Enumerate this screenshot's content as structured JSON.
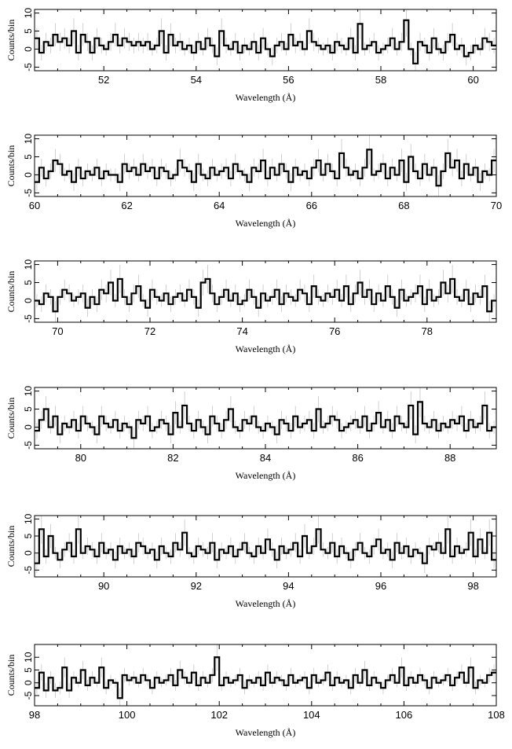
{
  "chart_data": [
    {
      "type": "line",
      "xlabel": "Wavelength (Å)",
      "ylabel": "Counts/bin",
      "xlim": [
        50.5,
        60.5
      ],
      "ylim": [
        -6,
        11
      ],
      "xticks": [
        52,
        54,
        56,
        58,
        60
      ],
      "yticks": [
        -5,
        0,
        5,
        10
      ],
      "grid": false,
      "x": [
        50.5,
        50.6,
        50.7,
        50.8,
        50.9,
        51.0,
        51.1,
        51.2,
        51.3,
        51.4,
        51.5,
        51.6,
        51.7,
        51.8,
        51.9,
        52.0,
        52.1,
        52.2,
        52.3,
        52.4,
        52.5,
        52.6,
        52.7,
        52.8,
        52.9,
        53.0,
        53.1,
        53.2,
        53.3,
        53.4,
        53.5,
        53.6,
        53.7,
        53.8,
        53.9,
        54.0,
        54.1,
        54.2,
        54.3,
        54.4,
        54.5,
        54.6,
        54.7,
        54.8,
        54.9,
        55.0,
        55.1,
        55.2,
        55.3,
        55.4,
        55.5,
        55.6,
        55.7,
        55.8,
        55.9,
        56.0,
        56.1,
        56.2,
        56.3,
        56.4,
        56.5,
        56.6,
        56.7,
        56.8,
        56.9,
        57.0,
        57.1,
        57.2,
        57.3,
        57.4,
        57.5,
        57.6,
        57.7,
        57.8,
        57.9,
        58.0,
        58.1,
        58.2,
        58.3,
        58.4,
        58.5,
        58.6,
        58.7,
        58.8,
        58.9,
        59.0,
        59.1,
        59.2,
        59.3,
        59.4,
        59.5,
        59.6,
        59.7,
        59.8,
        59.9,
        60.0,
        60.1,
        60.2,
        60.3,
        60.4
      ],
      "values": [
        3,
        -1,
        2,
        1,
        4,
        2,
        3,
        1,
        5,
        -1,
        4,
        2,
        -1,
        3,
        1,
        0,
        2,
        4,
        1,
        3,
        2,
        1,
        2,
        1,
        2,
        0,
        1,
        5,
        -1,
        4,
        1,
        2,
        0,
        1,
        -1,
        2,
        0,
        3,
        1,
        -2,
        5,
        1,
        0,
        2,
        -1,
        1,
        0,
        2,
        -1,
        3,
        0,
        -2,
        1,
        2,
        0,
        4,
        1,
        2,
        0,
        5,
        2,
        1,
        0,
        1,
        -1,
        2,
        1,
        0,
        3,
        -1,
        7,
        0,
        1,
        2,
        -1,
        0,
        1,
        3,
        0,
        2,
        8,
        0,
        -4,
        2,
        1,
        -1,
        3,
        0,
        -1,
        2,
        4,
        0,
        1,
        -2,
        -1,
        1,
        0,
        3,
        2,
        1
      ]
    },
    {
      "type": "line",
      "xlabel": "Wavelength (Å)",
      "ylabel": "Counts/bin",
      "xlim": [
        60,
        70
      ],
      "ylim": [
        -6,
        11
      ],
      "xticks": [
        60,
        62,
        64,
        66,
        68,
        70
      ],
      "yticks": [
        -5,
        0,
        5,
        10
      ],
      "grid": false,
      "x": [
        60.0,
        60.1,
        60.2,
        60.3,
        60.4,
        60.5,
        60.6,
        60.7,
        60.8,
        60.9,
        61.0,
        61.1,
        61.2,
        61.3,
        61.4,
        61.5,
        61.6,
        61.7,
        61.8,
        61.9,
        62.0,
        62.1,
        62.2,
        62.3,
        62.4,
        62.5,
        62.6,
        62.7,
        62.8,
        62.9,
        63.0,
        63.1,
        63.2,
        63.3,
        63.4,
        63.5,
        63.6,
        63.7,
        63.8,
        63.9,
        64.0,
        64.1,
        64.2,
        64.3,
        64.4,
        64.5,
        64.6,
        64.7,
        64.8,
        64.9,
        65.0,
        65.1,
        65.2,
        65.3,
        65.4,
        65.5,
        65.6,
        65.7,
        65.8,
        65.9,
        66.0,
        66.1,
        66.2,
        66.3,
        66.4,
        66.5,
        66.6,
        66.7,
        66.8,
        66.9,
        67.0,
        67.1,
        67.2,
        67.3,
        67.4,
        67.5,
        67.6,
        67.7,
        67.8,
        67.9,
        68.0,
        68.1,
        68.2,
        68.3,
        68.4,
        68.5,
        68.6,
        68.7,
        68.8,
        68.9,
        69.0,
        69.1,
        69.2,
        69.3,
        69.4,
        69.5,
        69.6,
        69.7,
        69.8,
        69.9
      ],
      "values": [
        -2,
        2,
        -1,
        1,
        4,
        3,
        0,
        1,
        -2,
        2,
        -1,
        1,
        0,
        2,
        -1,
        1,
        0,
        0,
        -2,
        3,
        1,
        2,
        0,
        3,
        1,
        2,
        -1,
        2,
        1,
        -1,
        0,
        4,
        2,
        1,
        -2,
        3,
        0,
        -1,
        2,
        0,
        1,
        2,
        -1,
        3,
        1,
        0,
        -2,
        2,
        1,
        4,
        -1,
        2,
        0,
        3,
        1,
        -2,
        2,
        0,
        1,
        -1,
        2,
        4,
        0,
        3,
        1,
        -1,
        6,
        2,
        0,
        1,
        -1,
        2,
        7,
        0,
        1,
        3,
        -1,
        2,
        0,
        4,
        -2,
        5,
        1,
        -1,
        3,
        0,
        2,
        -3,
        1,
        6,
        2,
        4,
        -1,
        3,
        0,
        2,
        -2,
        1,
        0,
        4
      ]
    },
    {
      "type": "line",
      "xlabel": "Wavelength (Å)",
      "ylabel": "Counts/bin",
      "xlim": [
        69.5,
        79.5
      ],
      "ylim": [
        -6,
        11
      ],
      "xticks": [
        70,
        72,
        74,
        76,
        78
      ],
      "yticks": [
        -5,
        0,
        5,
        10
      ],
      "grid": false,
      "x": [
        69.5,
        69.6,
        69.7,
        69.8,
        69.9,
        70.0,
        70.1,
        70.2,
        70.3,
        70.4,
        70.5,
        70.6,
        70.7,
        70.8,
        70.9,
        71.0,
        71.1,
        71.2,
        71.3,
        71.4,
        71.5,
        71.6,
        71.7,
        71.8,
        71.9,
        72.0,
        72.1,
        72.2,
        72.3,
        72.4,
        72.5,
        72.6,
        72.7,
        72.8,
        72.9,
        73.0,
        73.1,
        73.2,
        73.3,
        73.4,
        73.5,
        73.6,
        73.7,
        73.8,
        73.9,
        74.0,
        74.1,
        74.2,
        74.3,
        74.4,
        74.5,
        74.6,
        74.7,
        74.8,
        74.9,
        75.0,
        75.1,
        75.2,
        75.3,
        75.4,
        75.5,
        75.6,
        75.7,
        75.8,
        75.9,
        76.0,
        76.1,
        76.2,
        76.3,
        76.4,
        76.5,
        76.6,
        76.7,
        76.8,
        76.9,
        77.0,
        77.1,
        77.2,
        77.3,
        77.4,
        77.5,
        77.6,
        77.7,
        77.8,
        77.9,
        78.0,
        78.1,
        78.2,
        78.3,
        78.4,
        78.5,
        78.6,
        78.7,
        78.8,
        78.9,
        79.0,
        79.1,
        79.2,
        79.3,
        79.4
      ],
      "values": [
        0,
        -1,
        2,
        1,
        -3,
        1,
        3,
        2,
        0,
        1,
        2,
        -2,
        1,
        -1,
        3,
        2,
        5,
        0,
        6,
        1,
        -1,
        2,
        4,
        0,
        -2,
        3,
        1,
        0,
        2,
        -1,
        1,
        2,
        0,
        3,
        1,
        -2,
        5,
        6,
        2,
        -1,
        1,
        3,
        0,
        2,
        -1,
        0,
        3,
        1,
        -2,
        2,
        0,
        1,
        3,
        -1,
        2,
        1,
        0,
        3,
        2,
        -1,
        4,
        1,
        0,
        2,
        1,
        3,
        0,
        4,
        -1,
        2,
        5,
        1,
        3,
        -1,
        2,
        0,
        4,
        1,
        -2,
        3,
        0,
        1,
        2,
        4,
        -1,
        3,
        0,
        1,
        5,
        2,
        6,
        1,
        0,
        3,
        -1,
        2,
        1,
        4,
        -3,
        0
      ]
    },
    {
      "type": "line",
      "xlabel": "Wavelength (Å)",
      "ylabel": "Counts/bin",
      "xlim": [
        79,
        89
      ],
      "ylim": [
        -6,
        11
      ],
      "xticks": [
        80,
        82,
        84,
        86,
        88
      ],
      "yticks": [
        -5,
        0,
        5,
        10
      ],
      "grid": false,
      "x": [
        79.0,
        79.1,
        79.2,
        79.3,
        79.4,
        79.5,
        79.6,
        79.7,
        79.8,
        79.9,
        80.0,
        80.1,
        80.2,
        80.3,
        80.4,
        80.5,
        80.6,
        80.7,
        80.8,
        80.9,
        81.0,
        81.1,
        81.2,
        81.3,
        81.4,
        81.5,
        81.6,
        81.7,
        81.8,
        81.9,
        82.0,
        82.1,
        82.2,
        82.3,
        82.4,
        82.5,
        82.6,
        82.7,
        82.8,
        82.9,
        83.0,
        83.1,
        83.2,
        83.3,
        83.4,
        83.5,
        83.6,
        83.7,
        83.8,
        83.9,
        84.0,
        84.1,
        84.2,
        84.3,
        84.4,
        84.5,
        84.6,
        84.7,
        84.8,
        84.9,
        85.0,
        85.1,
        85.2,
        85.3,
        85.4,
        85.5,
        85.6,
        85.7,
        85.8,
        85.9,
        86.0,
        86.1,
        86.2,
        86.3,
        86.4,
        86.5,
        86.6,
        86.7,
        86.8,
        86.9,
        87.0,
        87.1,
        87.2,
        87.3,
        87.4,
        87.5,
        87.6,
        87.7,
        87.8,
        87.9,
        88.0,
        88.1,
        88.2,
        88.3,
        88.4,
        88.5,
        88.6,
        88.7,
        88.8,
        88.9
      ],
      "values": [
        -1,
        2,
        5,
        0,
        3,
        -2,
        1,
        0,
        2,
        -1,
        3,
        1,
        0,
        -2,
        3,
        1,
        0,
        2,
        -1,
        1,
        0,
        -3,
        2,
        1,
        3,
        -1,
        0,
        2,
        1,
        -2,
        4,
        0,
        6,
        1,
        -1,
        2,
        0,
        -2,
        3,
        1,
        -1,
        2,
        5,
        0,
        -1,
        2,
        1,
        3,
        0,
        -1,
        1,
        0,
        -2,
        2,
        1,
        -1,
        3,
        0,
        1,
        2,
        -1,
        5,
        0,
        1,
        3,
        2,
        -1,
        0,
        1,
        2,
        0,
        3,
        -1,
        1,
        4,
        0,
        2,
        -1,
        3,
        1,
        0,
        6,
        -2,
        7,
        1,
        0,
        2,
        -1,
        1,
        0,
        2,
        1,
        3,
        -1,
        2,
        0,
        1,
        6,
        -1,
        0
      ]
    },
    {
      "type": "line",
      "xlabel": "Wavelength (Å)",
      "ylabel": "Counts/bin",
      "xlim": [
        88.5,
        98.5
      ],
      "ylim": [
        -7,
        11
      ],
      "xticks": [
        90,
        92,
        94,
        96,
        98
      ],
      "yticks": [
        -5,
        0,
        5,
        10
      ],
      "grid": false,
      "x": [
        88.5,
        88.6,
        88.7,
        88.8,
        88.9,
        89.0,
        89.1,
        89.2,
        89.3,
        89.4,
        89.5,
        89.6,
        89.7,
        89.8,
        89.9,
        90.0,
        90.1,
        90.2,
        90.3,
        90.4,
        90.5,
        90.6,
        90.7,
        90.8,
        90.9,
        91.0,
        91.1,
        91.2,
        91.3,
        91.4,
        91.5,
        91.6,
        91.7,
        91.8,
        91.9,
        92.0,
        92.1,
        92.2,
        92.3,
        92.4,
        92.5,
        92.6,
        92.7,
        92.8,
        92.9,
        93.0,
        93.1,
        93.2,
        93.3,
        93.4,
        93.5,
        93.6,
        93.7,
        93.8,
        93.9,
        94.0,
        94.1,
        94.2,
        94.3,
        94.4,
        94.5,
        94.6,
        94.7,
        94.8,
        94.9,
        95.0,
        95.1,
        95.2,
        95.3,
        95.4,
        95.5,
        95.6,
        95.7,
        95.8,
        95.9,
        96.0,
        96.1,
        96.2,
        96.3,
        96.4,
        96.5,
        96.6,
        96.7,
        96.8,
        96.9,
        97.0,
        97.1,
        97.2,
        97.3,
        97.4,
        97.5,
        97.6,
        97.7,
        97.8,
        97.9,
        98.0,
        98.1,
        98.2,
        98.3,
        98.4
      ],
      "values": [
        -3,
        7,
        -1,
        5,
        0,
        -2,
        1,
        3,
        -1,
        7,
        0,
        2,
        1,
        -1,
        3,
        0,
        1,
        -2,
        2,
        0,
        1,
        -1,
        3,
        2,
        0,
        1,
        -2,
        2,
        0,
        -1,
        3,
        1,
        6,
        0,
        -1,
        2,
        1,
        0,
        3,
        -2,
        1,
        0,
        2,
        -1,
        1,
        3,
        0,
        -1,
        2,
        0,
        4,
        1,
        -2,
        2,
        0,
        1,
        3,
        -1,
        5,
        0,
        2,
        7,
        1,
        0,
        3,
        -1,
        2,
        0,
        -2,
        1,
        3,
        0,
        -1,
        2,
        4,
        0,
        1,
        -2,
        3,
        0,
        2,
        -1,
        1,
        0,
        -3,
        2,
        1,
        3,
        0,
        7,
        -1,
        2,
        0,
        1,
        6,
        -1,
        4,
        0,
        6,
        -2
      ]
    },
    {
      "type": "line",
      "xlabel": "Wavelength (Å)",
      "ylabel": "Counts/bin",
      "xlim": [
        98,
        108
      ],
      "ylim": [
        -9,
        15
      ],
      "xticks": [
        98,
        100,
        102,
        104,
        106,
        108
      ],
      "yticks": [
        -5,
        0,
        5,
        10
      ],
      "grid": false,
      "x": [
        98.0,
        98.1,
        98.2,
        98.3,
        98.4,
        98.5,
        98.6,
        98.7,
        98.8,
        98.9,
        99.0,
        99.1,
        99.2,
        99.3,
        99.4,
        99.5,
        99.6,
        99.7,
        99.8,
        99.9,
        100.0,
        100.1,
        100.2,
        100.3,
        100.4,
        100.5,
        100.6,
        100.7,
        100.8,
        100.9,
        101.0,
        101.1,
        101.2,
        101.3,
        101.4,
        101.5,
        101.6,
        101.7,
        101.8,
        101.9,
        102.0,
        102.1,
        102.2,
        102.3,
        102.4,
        102.5,
        102.6,
        102.7,
        102.8,
        102.9,
        103.0,
        103.1,
        103.2,
        103.3,
        103.4,
        103.5,
        103.6,
        103.7,
        103.8,
        103.9,
        104.0,
        104.1,
        104.2,
        104.3,
        104.4,
        104.5,
        104.6,
        104.7,
        104.8,
        104.9,
        105.0,
        105.1,
        105.2,
        105.3,
        105.4,
        105.5,
        105.6,
        105.7,
        105.8,
        105.9,
        106.0,
        106.1,
        106.2,
        106.3,
        106.4,
        106.5,
        106.6,
        106.7,
        106.8,
        106.9,
        107.0,
        107.1,
        107.2,
        107.3,
        107.4,
        107.5,
        107.6,
        107.7,
        107.8,
        107.9
      ],
      "values": [
        -2,
        4,
        -3,
        2,
        -3,
        -2,
        6,
        -3,
        2,
        0,
        5,
        -1,
        2,
        0,
        6,
        -2,
        1,
        0,
        -6,
        3,
        1,
        2,
        0,
        3,
        1,
        -2,
        2,
        0,
        1,
        3,
        -1,
        5,
        2,
        0,
        4,
        -1,
        2,
        0,
        3,
        10,
        -1,
        2,
        0,
        1,
        3,
        -2,
        1,
        0,
        2,
        -1,
        4,
        0,
        2,
        1,
        -1,
        3,
        0,
        1,
        2,
        -2,
        3,
        0,
        1,
        4,
        -1,
        2,
        0,
        1,
        -2,
        3,
        0,
        5,
        -1,
        2,
        0,
        -2,
        1,
        3,
        0,
        6,
        -1,
        2,
        0,
        3,
        1,
        -2,
        2,
        0,
        1,
        3,
        -1,
        2,
        4,
        0,
        6,
        -2,
        1,
        0,
        3,
        4
      ]
    }
  ]
}
